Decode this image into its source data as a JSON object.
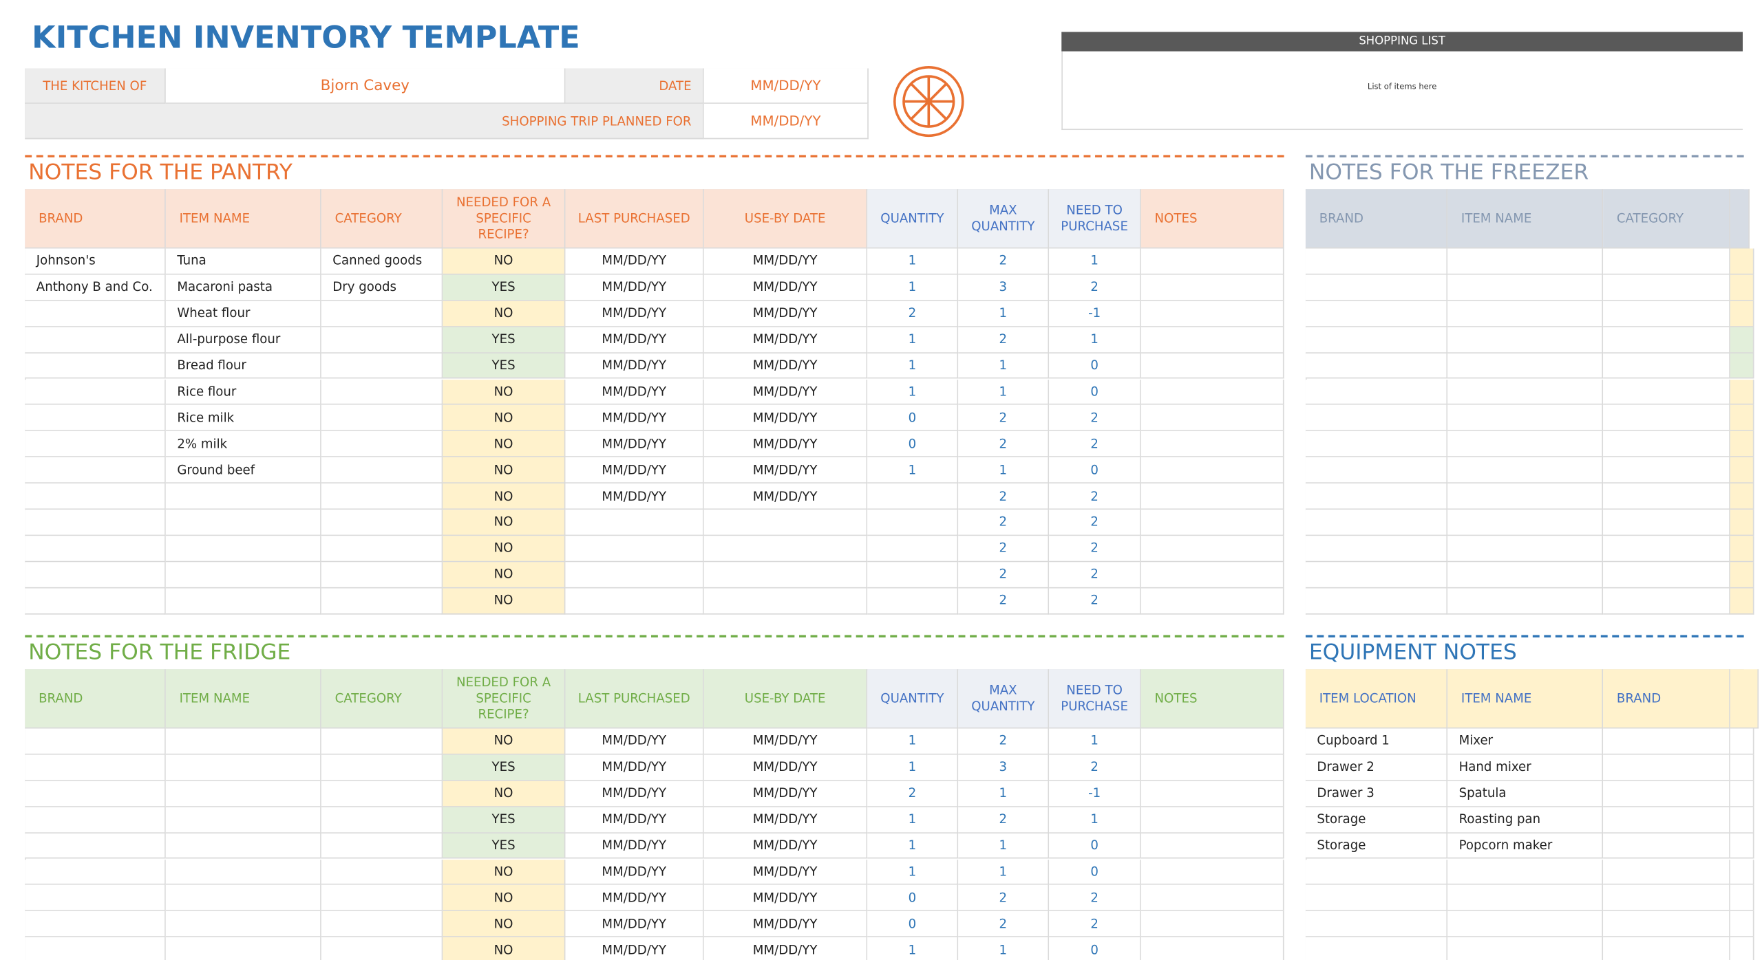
{
  "title": "KITCHEN INVENTORY TEMPLATE",
  "header": {
    "kitchen_of_label": "THE KITCHEN OF",
    "kitchen_of": "Bjorn Cavey",
    "date_label": "DATE",
    "date": "MM/DD/YY",
    "trip_label": "SHOPPING TRIP PLANNED FOR",
    "trip": "MM/DD/YY"
  },
  "shopping_list": {
    "title": "SHOPPING LIST",
    "text": "List of items here"
  },
  "pantry": {
    "title": "NOTES FOR THE PANTRY",
    "headers": [
      "BRAND",
      "ITEM NAME",
      "CATEGORY",
      "NEEDED FOR A SPECIFIC RECIPE?",
      "LAST PURCHASED",
      "USE-BY DATE",
      "QUANTITY",
      "MAX QUANTITY",
      "NEED TO PURCHASE",
      "NOTES"
    ],
    "rows": [
      [
        "Johnson's",
        "Tuna",
        "Canned goods",
        "NO",
        "MM/DD/YY",
        "MM/DD/YY",
        1,
        2,
        1
      ],
      [
        "Anthony B and Co.",
        "Macaroni pasta",
        "Dry goods",
        "YES",
        "MM/DD/YY",
        "MM/DD/YY",
        1,
        3,
        2
      ],
      [
        null,
        "Wheat flour",
        null,
        "NO",
        "MM/DD/YY",
        "MM/DD/YY",
        2,
        1,
        -1
      ],
      [
        null,
        "All-purpose flour",
        null,
        "YES",
        "MM/DD/YY",
        "MM/DD/YY",
        1,
        2,
        1
      ],
      [
        null,
        "Bread flour",
        null,
        "YES",
        "MM/DD/YY",
        "MM/DD/YY",
        1,
        1,
        0
      ],
      [
        null,
        "Rice flour",
        null,
        "NO",
        "MM/DD/YY",
        "MM/DD/YY",
        1,
        1,
        0
      ],
      [
        null,
        "Rice milk",
        null,
        "NO",
        "MM/DD/YY",
        "MM/DD/YY",
        0,
        2,
        2
      ],
      [
        null,
        "2% milk",
        null,
        "NO",
        "MM/DD/YY",
        "MM/DD/YY",
        0,
        2,
        2
      ],
      [
        null,
        "Ground beef",
        null,
        "NO",
        "MM/DD/YY",
        "MM/DD/YY",
        1,
        1,
        0
      ],
      [
        null,
        null,
        null,
        "NO",
        "MM/DD/YY",
        "MM/DD/YY",
        null,
        2,
        2
      ],
      [
        null,
        null,
        null,
        "NO",
        null,
        null,
        null,
        2,
        2
      ],
      [
        null,
        null,
        null,
        "NO",
        null,
        null,
        null,
        2,
        2
      ],
      [
        null,
        null,
        null,
        "NO",
        null,
        null,
        null,
        2,
        2
      ],
      [
        null,
        null,
        null,
        "NO",
        null,
        null,
        null,
        2,
        2
      ]
    ]
  },
  "freezer": {
    "title": "NOTES FOR THE FREEZER",
    "headers": [
      "BRAND",
      "ITEM NAME",
      "CATEGORY"
    ]
  },
  "fridge": {
    "title": "NOTES FOR THE FRIDGE",
    "headers": [
      "BRAND",
      "ITEM NAME",
      "CATEGORY",
      "NEEDED FOR A SPECIFIC RECIPE?",
      "LAST PURCHASED",
      "USE-BY DATE",
      "QUANTITY",
      "MAX QUANTITY",
      "NEED TO PURCHASE",
      "NOTES"
    ],
    "rows": [
      [
        null,
        null,
        null,
        "NO",
        "MM/DD/YY",
        "MM/DD/YY",
        1,
        2,
        1
      ],
      [
        null,
        null,
        null,
        "YES",
        "MM/DD/YY",
        "MM/DD/YY",
        1,
        3,
        2
      ],
      [
        null,
        null,
        null,
        "NO",
        "MM/DD/YY",
        "MM/DD/YY",
        2,
        1,
        -1
      ],
      [
        null,
        null,
        null,
        "YES",
        "MM/DD/YY",
        "MM/DD/YY",
        1,
        2,
        1
      ],
      [
        null,
        null,
        null,
        "YES",
        "MM/DD/YY",
        "MM/DD/YY",
        1,
        1,
        0
      ],
      [
        null,
        null,
        null,
        "NO",
        "MM/DD/YY",
        "MM/DD/YY",
        1,
        1,
        0
      ],
      [
        null,
        null,
        null,
        "NO",
        "MM/DD/YY",
        "MM/DD/YY",
        0,
        2,
        2
      ],
      [
        null,
        null,
        null,
        "NO",
        "MM/DD/YY",
        "MM/DD/YY",
        0,
        2,
        2
      ],
      [
        null,
        null,
        null,
        "NO",
        "MM/DD/YY",
        "MM/DD/YY",
        1,
        1,
        0
      ]
    ]
  },
  "equipment": {
    "title": "EQUIPMENT NOTES",
    "headers": [
      "ITEM LOCATION",
      "ITEM NAME",
      "BRAND"
    ],
    "rows": [
      [
        "Cupboard 1",
        "Mixer"
      ],
      [
        "Drawer 2",
        "Hand mixer"
      ],
      [
        "Drawer 3",
        "Spatula"
      ],
      [
        "Storage",
        "Roasting pan"
      ],
      [
        "Storage",
        "Popcorn maker"
      ]
    ]
  }
}
